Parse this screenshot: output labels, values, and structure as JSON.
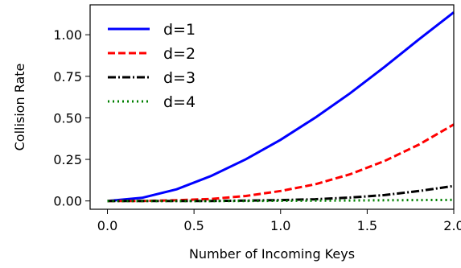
{
  "chart_data": {
    "type": "line",
    "xlabel": "Number of Incoming Keys",
    "ylabel": "Collision Rate",
    "xlim": [
      -0.1,
      2.0
    ],
    "ylim": [
      -0.05,
      1.18
    ],
    "x_ticks": [
      "0.0",
      "0.5",
      "1.0",
      "1.5",
      "2.0"
    ],
    "y_ticks": [
      "0.00",
      "0.25",
      "0.50",
      "0.75",
      "1.00"
    ],
    "grid": false,
    "legend_position": "top-left",
    "x": [
      0.0,
      0.2,
      0.4,
      0.6,
      0.8,
      1.0,
      1.2,
      1.4,
      1.6,
      1.8,
      2.0
    ],
    "series": [
      {
        "name": "d=1",
        "color": "#0000ff",
        "style": "solid",
        "values": [
          0.0,
          0.019,
          0.07,
          0.151,
          0.251,
          0.368,
          0.501,
          0.647,
          0.806,
          0.973,
          1.135
        ]
      },
      {
        "name": "d=2",
        "color": "#ff0000",
        "style": "dashed",
        "values": [
          0.0,
          0.0,
          0.004,
          0.012,
          0.03,
          0.06,
          0.1,
          0.16,
          0.24,
          0.34,
          0.46
        ]
      },
      {
        "name": "d=3",
        "color": "#000000",
        "style": "dashdot",
        "values": [
          0.0,
          0.0,
          0.0,
          0.0,
          0.002,
          0.005,
          0.01,
          0.02,
          0.035,
          0.06,
          0.09
        ]
      },
      {
        "name": "d=4",
        "color": "#008000",
        "style": "dotted",
        "values": [
          0.0,
          0.0,
          0.0,
          0.0,
          0.0,
          0.001,
          0.002,
          0.003,
          0.004,
          0.005,
          0.006
        ]
      }
    ]
  }
}
